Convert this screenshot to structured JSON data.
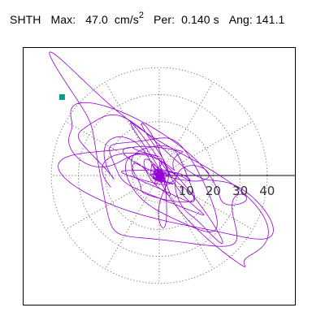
{
  "header": {
    "station": "SHTH",
    "max_label": "Max:",
    "max_value": "47.0",
    "max_unit_base": "cm/s",
    "max_unit_exp": "2",
    "per_label": "Per:",
    "per_value": "0.140 s",
    "ang_label": "Ang:",
    "ang_value": "141.1"
  },
  "chart_data": {
    "type": "polar-trajectory",
    "title": "",
    "radial_ticks": [
      "10",
      "20",
      "30",
      "40"
    ],
    "radial_tick_values": [
      10,
      20,
      30,
      40
    ],
    "radial_max": 40,
    "angular_divisions_deg": 30,
    "grid": true,
    "max_amplitude": 47.0,
    "max_angle_deg": 141.1,
    "trace_color": "#9400d3",
    "marker_color": "#009f7f",
    "axis_color": "#000000",
    "grid_color": "#666666"
  }
}
